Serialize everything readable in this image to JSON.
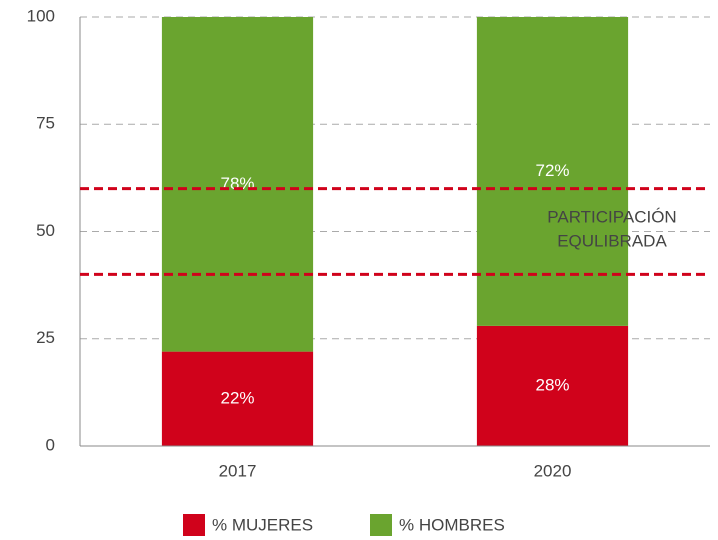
{
  "chart_data": {
    "type": "stacked_bar",
    "categories": [
      "2017",
      "2020"
    ],
    "series": [
      {
        "name": "% MUJERES",
        "color": "#d0021b",
        "values": [
          22,
          28
        ],
        "value_labels": [
          "22%",
          "28%"
        ]
      },
      {
        "name": "% HOMBRES",
        "color": "#6aa42f",
        "values": [
          78,
          72
        ],
        "value_labels": [
          "78%",
          "72%"
        ]
      }
    ],
    "ylim": [
      0,
      100
    ],
    "yticks": [
      0,
      25,
      50,
      75,
      100
    ],
    "grid": true,
    "reference_lines": [
      60,
      40
    ],
    "reference_color": "#d0021b",
    "annotation": [
      "PARTICIPACIÓN",
      "EQULIBRADA"
    ],
    "legend": "bottom"
  }
}
